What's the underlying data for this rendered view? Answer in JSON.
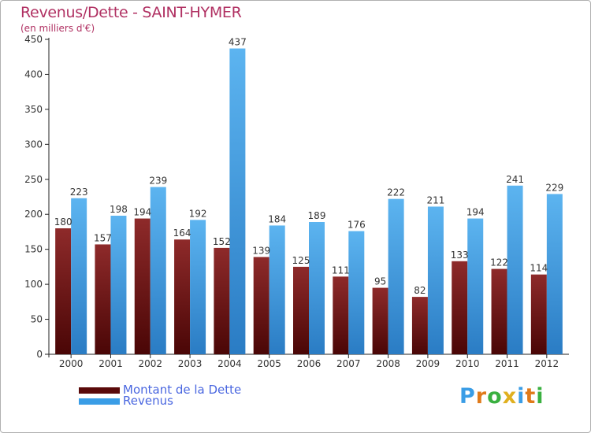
{
  "chart_data": {
    "type": "bar",
    "title": "Revenus/Dette - SAINT-HYMER",
    "subtitle": "(en milliers d'€)",
    "categories": [
      "2000",
      "2001",
      "2002",
      "2003",
      "2004",
      "2005",
      "2006",
      "2007",
      "2008",
      "2009",
      "2010",
      "2011",
      "2012"
    ],
    "series": [
      {
        "name": "Montant de la Dette",
        "color": "#7a1a1a",
        "values": [
          180,
          157,
          194,
          164,
          152,
          139,
          125,
          111,
          95,
          82,
          133,
          122,
          114
        ]
      },
      {
        "name": "Revenus",
        "color": "#3a9de6",
        "values": [
          223,
          198,
          239,
          192,
          437,
          184,
          189,
          176,
          222,
          211,
          194,
          241,
          229
        ]
      }
    ],
    "ylim": [
      0,
      450
    ],
    "yticks": [
      0,
      50,
      100,
      150,
      200,
      250,
      300,
      350,
      400,
      450
    ],
    "grid": false,
    "legend_placement": "bottom-left"
  },
  "logo_text": "Proxiti"
}
